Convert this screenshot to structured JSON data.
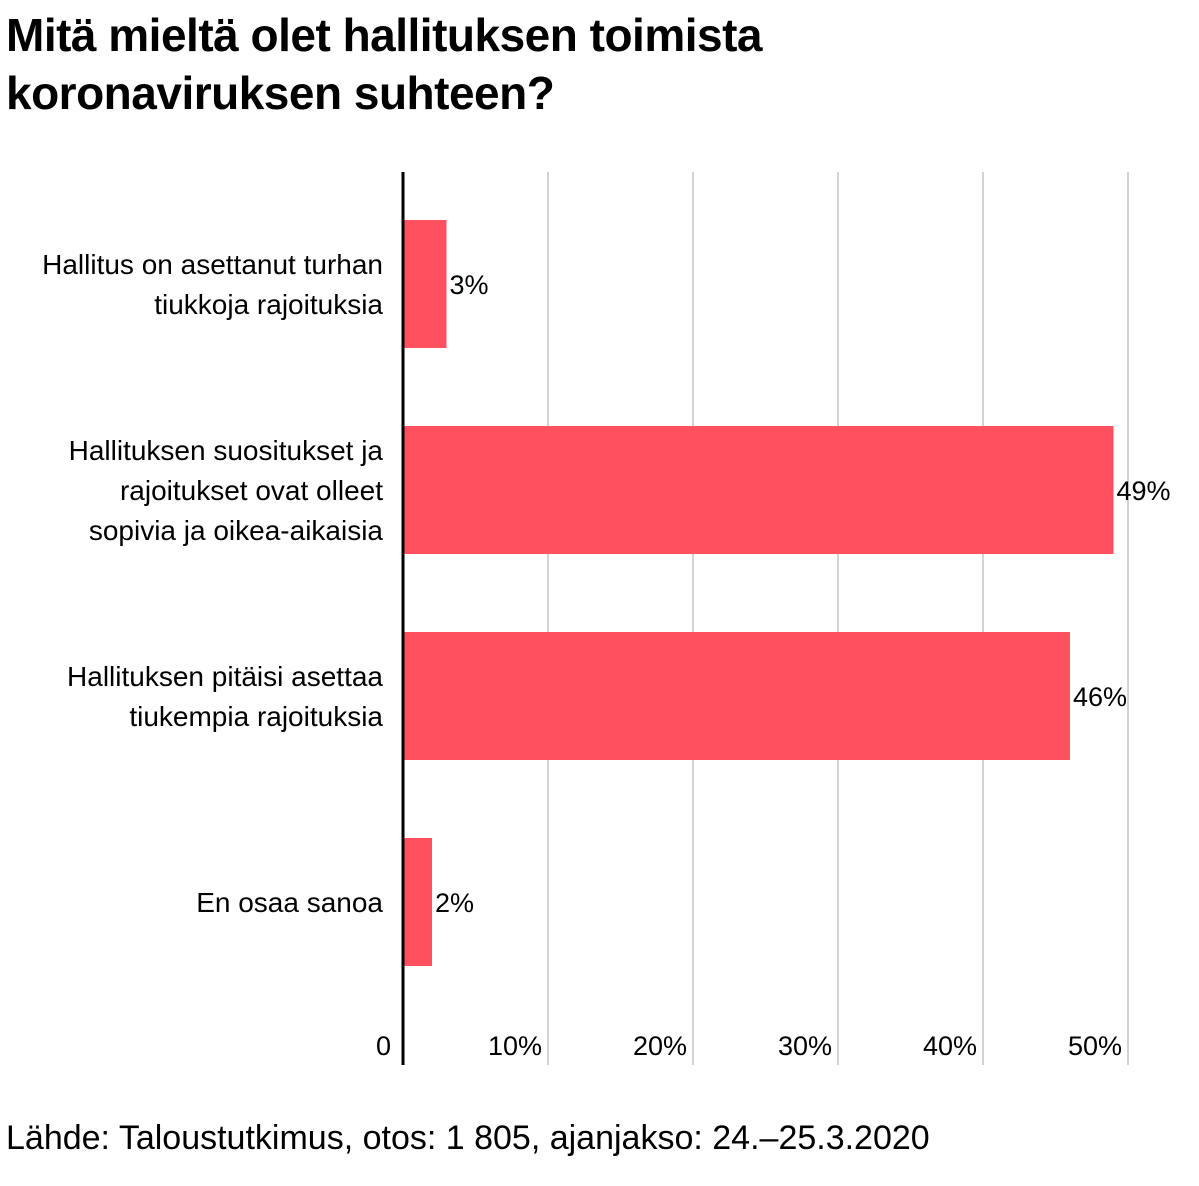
{
  "chart_data": {
    "type": "bar",
    "orientation": "horizontal",
    "title": "Mitä mieltä olet hallituksen toimista\nkoronaviruksen suhteen?",
    "categories": [
      [
        "Hallitus on asettanut turhan",
        "tiukkoja rajoituksia"
      ],
      [
        "Hallituksen suositukset ja",
        "rajoitukset ovat olleet",
        "sopivia ja oikea-aikaisia"
      ],
      [
        "Hallituksen pitäisi asettaa",
        "tiukempia rajoituksia"
      ],
      [
        "En osaa sanoa"
      ]
    ],
    "values": [
      3,
      49,
      46,
      2
    ],
    "value_labels": [
      "3%",
      "49%",
      "46%",
      "2%"
    ],
    "xlim": [
      0,
      50
    ],
    "xticks": [
      0,
      10,
      20,
      30,
      40,
      50
    ],
    "xtick_labels": [
      "0",
      "10%",
      "20%",
      "30%",
      "40%",
      "50%"
    ],
    "grid": "vertical",
    "legend": "none",
    "bar_color": "#ff5060",
    "source": "Lähde: Taloustutkimus, otos: 1 805, ajanjakso: 24.–25.3.2020"
  }
}
